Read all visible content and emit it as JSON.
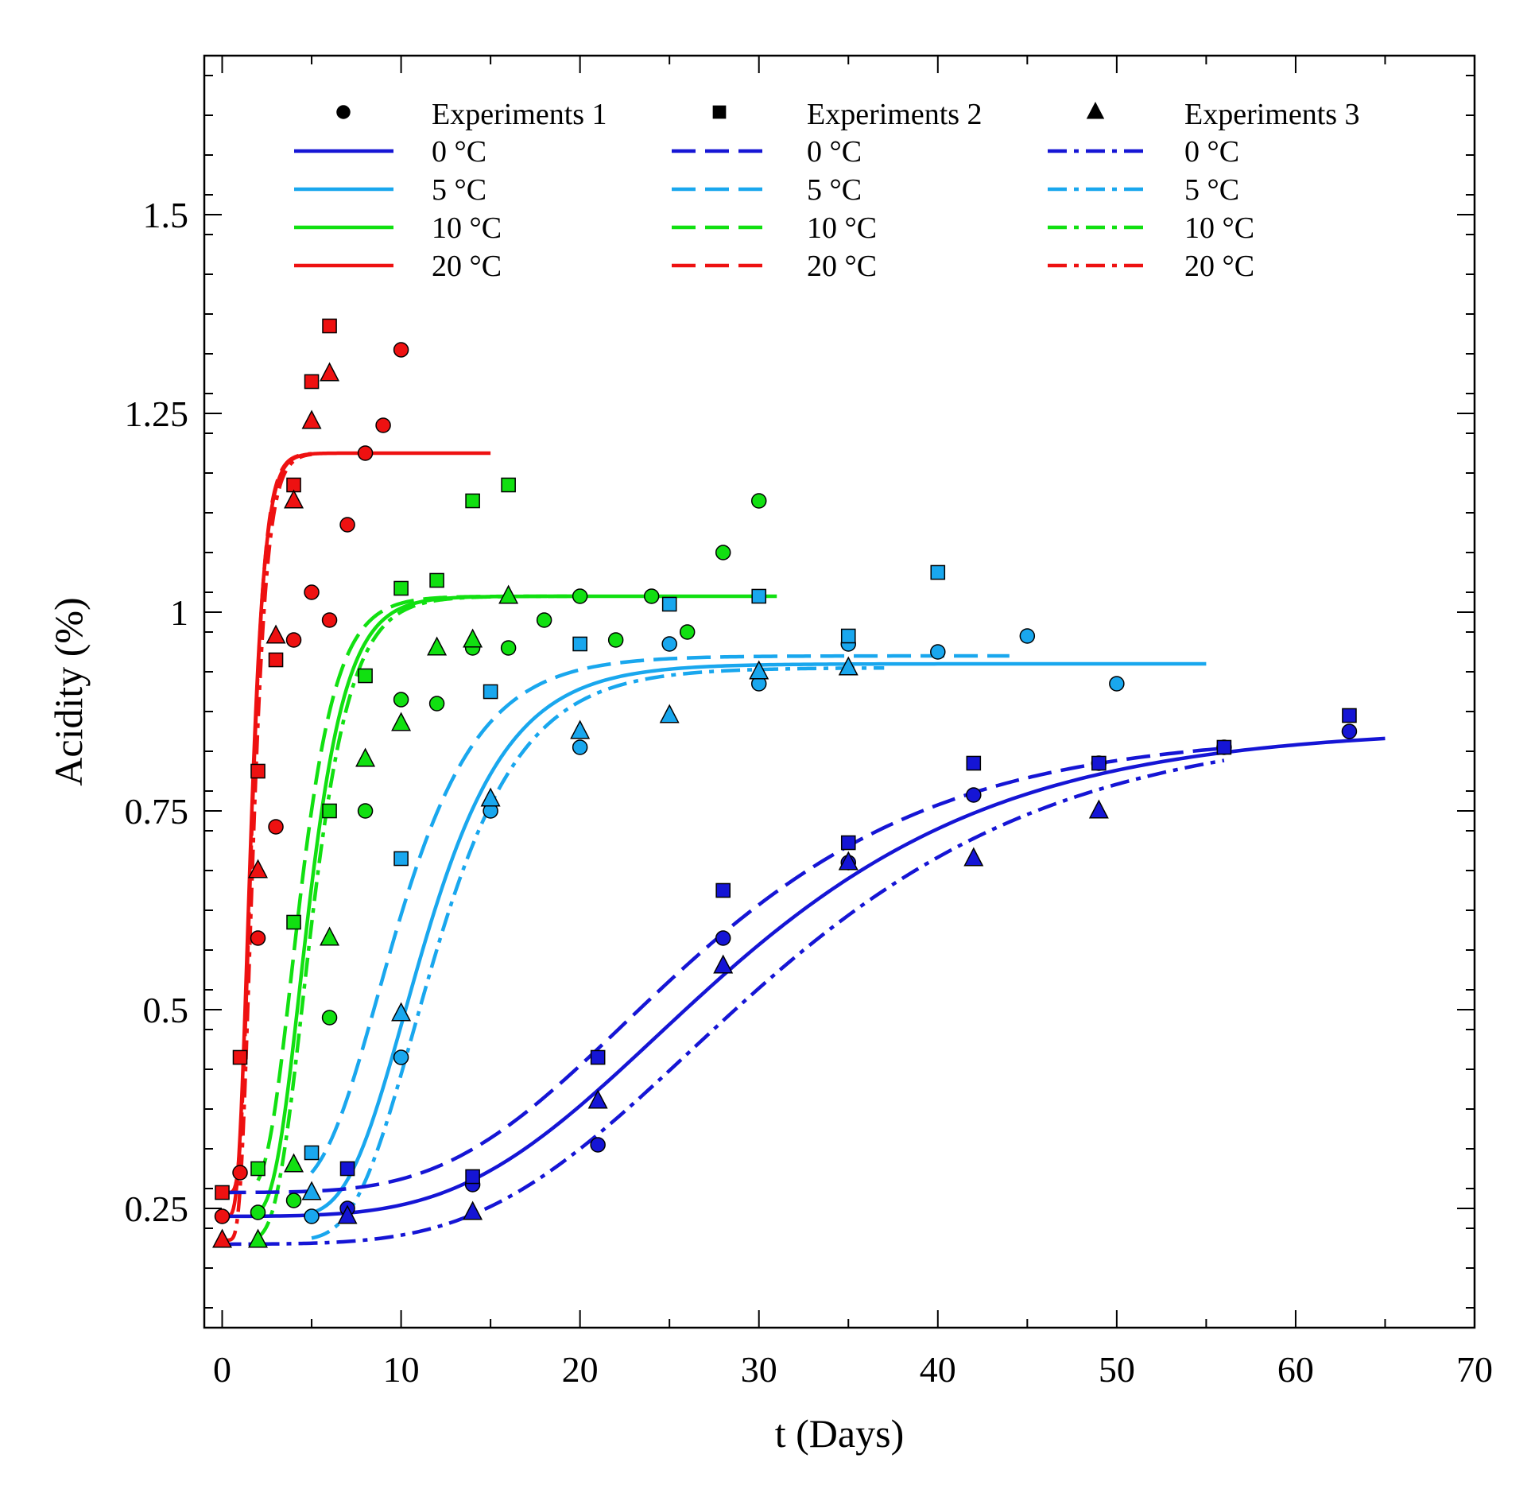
{
  "chart_data": {
    "type": "scatter",
    "title": "",
    "xlabel": "t (Days)",
    "ylabel": "Acidity (%)",
    "xlim": [
      -1,
      70
    ],
    "ylim": [
      0.1,
      1.7
    ],
    "grid": false,
    "x_ticks": [
      0,
      10,
      20,
      30,
      40,
      50,
      60,
      70
    ],
    "y_ticks": [
      0.25,
      0.5,
      0.75,
      1,
      1.25,
      1.5
    ],
    "x_tick_labels": [
      "0",
      "10",
      "20",
      "30",
      "40",
      "50",
      "60",
      "70"
    ],
    "y_tick_labels": [
      "0.25",
      "0.5",
      "0.75",
      "1",
      "1.25",
      "1.5"
    ],
    "colors": {
      "0": "#1515d5",
      "5": "#19a7ee",
      "10": "#11e011",
      "20": "#ee1111"
    },
    "legend": {
      "placement": "top",
      "experiments": [
        {
          "label": "Experiments 1",
          "marker": "circle",
          "linestyle": "solid"
        },
        {
          "label": "Experiments 2",
          "marker": "square",
          "linestyle": "dashed"
        },
        {
          "label": "Experiments 3",
          "marker": "triangle",
          "linestyle": "dashdot"
        }
      ],
      "temperatures": [
        {
          "key": "0",
          "label": "0 °C"
        },
        {
          "key": "5",
          "label": "5 °C"
        },
        {
          "key": "10",
          "label": "10 °C"
        },
        {
          "key": "20",
          "label": "20 °C"
        }
      ]
    },
    "series": [
      {
        "name": "Experiments 1 - 20 °C",
        "exp": 1,
        "temp": "20",
        "points": [
          [
            0,
            0.24
          ],
          [
            1,
            0.295
          ],
          [
            2,
            0.59
          ],
          [
            3,
            0.73
          ],
          [
            4,
            0.965
          ],
          [
            5,
            1.025
          ],
          [
            6,
            0.99
          ],
          [
            7,
            1.11
          ],
          [
            8,
            1.2
          ],
          [
            9,
            1.235
          ],
          [
            10,
            1.33
          ]
        ]
      },
      {
        "name": "Experiments 2 - 20 °C",
        "exp": 2,
        "temp": "20",
        "points": [
          [
            0,
            0.27
          ],
          [
            1,
            0.44
          ],
          [
            2,
            0.8
          ],
          [
            3,
            0.94
          ],
          [
            4,
            1.16
          ],
          [
            5,
            1.29
          ],
          [
            6,
            1.36
          ]
        ]
      },
      {
        "name": "Experiments 3 - 20 °C",
        "exp": 3,
        "temp": "20",
        "points": [
          [
            0,
            0.21
          ],
          [
            2,
            0.675
          ],
          [
            3,
            0.97
          ],
          [
            4,
            1.14
          ],
          [
            5,
            1.24
          ],
          [
            6,
            1.3
          ]
        ]
      },
      {
        "name": "Experiments 1 - 10 °C",
        "exp": 1,
        "temp": "10",
        "points": [
          [
            2,
            0.245
          ],
          [
            4,
            0.26
          ],
          [
            6,
            0.49
          ],
          [
            8,
            0.75
          ],
          [
            10,
            0.89
          ],
          [
            12,
            0.885
          ],
          [
            14,
            0.955
          ],
          [
            16,
            0.955
          ],
          [
            18,
            0.99
          ],
          [
            20,
            1.02
          ],
          [
            22,
            0.965
          ],
          [
            24,
            1.02
          ],
          [
            26,
            0.975
          ],
          [
            28,
            1.075
          ],
          [
            30,
            1.14
          ]
        ]
      },
      {
        "name": "Experiments 2 - 10 °C",
        "exp": 2,
        "temp": "10",
        "points": [
          [
            2,
            0.3
          ],
          [
            4,
            0.61
          ],
          [
            6,
            0.75
          ],
          [
            8,
            0.92
          ],
          [
            10,
            1.03
          ],
          [
            12,
            1.04
          ],
          [
            14,
            1.14
          ],
          [
            16,
            1.16
          ]
        ]
      },
      {
        "name": "Experiments 3 - 10 °C",
        "exp": 3,
        "temp": "10",
        "points": [
          [
            2,
            0.21
          ],
          [
            4,
            0.305
          ],
          [
            6,
            0.59
          ],
          [
            8,
            0.815
          ],
          [
            10,
            0.86
          ],
          [
            12,
            0.955
          ],
          [
            14,
            0.965
          ],
          [
            16,
            1.02
          ]
        ]
      },
      {
        "name": "Experiments 1 - 5 °C",
        "exp": 1,
        "temp": "5",
        "points": [
          [
            5,
            0.24
          ],
          [
            10,
            0.44
          ],
          [
            15,
            0.75
          ],
          [
            20,
            0.83
          ],
          [
            25,
            0.96
          ],
          [
            30,
            0.91
          ],
          [
            35,
            0.96
          ],
          [
            40,
            0.95
          ],
          [
            45,
            0.97
          ],
          [
            50,
            0.91
          ]
        ]
      },
      {
        "name": "Experiments 2 - 5 °C",
        "exp": 2,
        "temp": "5",
        "points": [
          [
            5,
            0.32
          ],
          [
            10,
            0.69
          ],
          [
            15,
            0.9
          ],
          [
            20,
            0.96
          ],
          [
            25,
            1.01
          ],
          [
            30,
            1.02
          ],
          [
            35,
            0.97
          ],
          [
            40,
            1.05
          ]
        ]
      },
      {
        "name": "Experiments 3 - 5 °C",
        "exp": 3,
        "temp": "5",
        "points": [
          [
            5,
            0.27
          ],
          [
            10,
            0.495
          ],
          [
            15,
            0.765
          ],
          [
            20,
            0.85
          ],
          [
            25,
            0.87
          ],
          [
            30,
            0.925
          ],
          [
            35,
            0.93
          ]
        ]
      },
      {
        "name": "Experiments 1 - 0 °C",
        "exp": 1,
        "temp": "0",
        "points": [
          [
            7,
            0.25
          ],
          [
            14,
            0.28
          ],
          [
            21,
            0.33
          ],
          [
            28,
            0.59
          ],
          [
            35,
            0.685
          ],
          [
            42,
            0.77
          ],
          [
            49,
            0.81
          ],
          [
            56,
            0.83
          ],
          [
            63,
            0.85
          ]
        ]
      },
      {
        "name": "Experiments 2 - 0 °C",
        "exp": 2,
        "temp": "0",
        "points": [
          [
            7,
            0.3
          ],
          [
            14,
            0.29
          ],
          [
            21,
            0.44
          ],
          [
            28,
            0.65
          ],
          [
            35,
            0.71
          ],
          [
            42,
            0.81
          ],
          [
            49,
            0.81
          ],
          [
            56,
            0.83
          ],
          [
            63,
            0.87
          ]
        ]
      },
      {
        "name": "Experiments 3 - 0 °C",
        "exp": 3,
        "temp": "0",
        "points": [
          [
            7,
            0.24
          ],
          [
            14,
            0.245
          ],
          [
            21,
            0.385
          ],
          [
            28,
            0.555
          ],
          [
            35,
            0.685
          ],
          [
            42,
            0.69
          ],
          [
            49,
            0.75
          ]
        ]
      }
    ],
    "fit_curves": [
      {
        "name": "Fit 20 °C - Exp 1",
        "exp": 1,
        "temp": "20",
        "y0": 0.24,
        "ymax": 1.2,
        "mu": 0.68,
        "lag": 0.9,
        "x_start": 0,
        "x_end": 15
      },
      {
        "name": "Fit 20 °C - Exp 2",
        "exp": 2,
        "temp": "20",
        "y0": 0.27,
        "ymax": 1.2,
        "mu": 0.7,
        "lag": 1.0,
        "x_start": 0,
        "x_end": 5
      },
      {
        "name": "Fit 20 °C - Exp 3",
        "exp": 3,
        "temp": "20",
        "y0": 0.21,
        "ymax": 1.2,
        "mu": 0.68,
        "lag": 1.0,
        "x_start": 0,
        "x_end": 5
      },
      {
        "name": "Fit 10 °C - Exp 1",
        "exp": 1,
        "temp": "10",
        "y0": 0.24,
        "ymax": 1.02,
        "mu": 0.2,
        "lag": 2.9,
        "x_start": 2,
        "x_end": 31
      },
      {
        "name": "Fit 10 °C - Exp 2",
        "exp": 2,
        "temp": "10",
        "y0": 0.27,
        "ymax": 1.02,
        "mu": 0.2,
        "lag": 2.5,
        "x_start": 2,
        "x_end": 20
      },
      {
        "name": "Fit 10 °C - Exp 3",
        "exp": 3,
        "temp": "10",
        "y0": 0.21,
        "ymax": 1.02,
        "mu": 0.2,
        "lag": 3.0,
        "x_start": 2,
        "x_end": 20
      },
      {
        "name": "Fit 5 °C - Exp 1",
        "exp": 1,
        "temp": "5",
        "y0": 0.24,
        "ymax": 0.935,
        "mu": 0.08,
        "lag": 7.0,
        "x_start": 5,
        "x_end": 55
      },
      {
        "name": "Fit 5 °C - Exp 2",
        "exp": 2,
        "temp": "5",
        "y0": 0.27,
        "ymax": 0.945,
        "mu": 0.08,
        "lag": 5.6,
        "x_start": 5,
        "x_end": 44
      },
      {
        "name": "Fit 5 °C - Exp 3",
        "exp": 3,
        "temp": "5",
        "y0": 0.21,
        "ymax": 0.93,
        "mu": 0.08,
        "lag": 7.4,
        "x_start": 5,
        "x_end": 37
      },
      {
        "name": "Fit 0 °C - Exp 1",
        "exp": 1,
        "temp": "0",
        "y0": 0.24,
        "ymax": 0.855,
        "mu": 0.021,
        "lag": 13.5,
        "x_start": 0,
        "x_end": 65
      },
      {
        "name": "Fit 0 °C - Exp 2",
        "exp": 2,
        "temp": "0",
        "y0": 0.27,
        "ymax": 0.848,
        "mu": 0.0215,
        "lag": 12.6,
        "x_start": 0,
        "x_end": 56
      },
      {
        "name": "Fit 0 °C - Exp 3",
        "exp": 3,
        "temp": "0",
        "y0": 0.205,
        "ymax": 0.86,
        "mu": 0.021,
        "lag": 14.6,
        "x_start": 0,
        "x_end": 56
      }
    ]
  }
}
